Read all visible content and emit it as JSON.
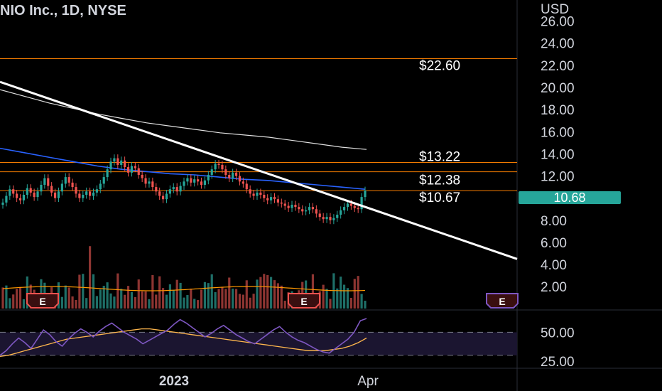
{
  "header": {
    "title": "NIO Inc., 1D, NYSE",
    "currency": "USD"
  },
  "last_price": {
    "label": "10.68",
    "color": "#26a69a"
  },
  "colors": {
    "up": "#26a69a",
    "down": "#ef5350",
    "ma_blue": "#2962ff",
    "ma_white": "#e0e0e0",
    "trendline": "#ffffff",
    "hline": "#f57c00",
    "volume_ma": "#ff9800",
    "rsi": "#7e57c2",
    "rsi_ma": "#ffb74d",
    "earnings": "#ef5350"
  },
  "chart_data": [
    {
      "type": "candlestick",
      "title": "NIO Inc., 1D, NYSE",
      "y_axis_label": "USD",
      "y_ticks": [
        "2.00",
        "4.00",
        "6.00",
        "8.00",
        "10.00",
        "12.00",
        "14.00",
        "16.00",
        "18.00",
        "20.00",
        "22.00",
        "24.00",
        "26.00"
      ],
      "ylim": [
        1.5,
        27
      ],
      "x_ticks": [
        "2023",
        "Apr"
      ],
      "levels": [
        {
          "label": "$22.60",
          "value": 22.6
        },
        {
          "label": "$13.22",
          "value": 13.22
        },
        {
          "label": "$12.38",
          "value": 12.38
        },
        {
          "label": "$10.67",
          "value": 10.67
        }
      ],
      "trendline": {
        "start": 20.5,
        "end": 4.5
      },
      "closes": [
        9.6,
        10.2,
        10.8,
        10.4,
        10.0,
        9.8,
        10.3,
        10.9,
        10.5,
        10.1,
        10.6,
        11.2,
        11.8,
        11.1,
        10.5,
        10.0,
        10.6,
        11.3,
        11.9,
        11.4,
        11.0,
        10.4,
        10.0,
        10.3,
        10.6,
        10.2,
        10.5,
        10.8,
        11.3,
        11.9,
        12.6,
        13.3,
        13.6,
        13.0,
        13.4,
        12.8,
        12.3,
        12.9,
        12.7,
        12.1,
        11.8,
        11.3,
        11.5,
        11.0,
        10.6,
        10.2,
        9.9,
        10.4,
        10.8,
        11.0,
        10.6,
        11.1,
        11.5,
        11.8,
        11.4,
        11.7,
        11.5,
        11.2,
        11.6,
        12.1,
        12.6,
        13.1,
        13.0,
        12.6,
        12.1,
        11.8,
        12.3,
        12.0,
        11.5,
        11.3,
        10.8,
        10.4,
        10.2,
        10.5,
        10.3,
        10.0,
        9.8,
        10.1,
        9.9,
        9.6,
        9.5,
        9.3,
        9.1,
        9.4,
        9.2,
        9.0,
        8.8,
        8.9,
        9.2,
        9.0,
        8.6,
        8.3,
        8.1,
        8.3,
        8.0,
        8.2,
        8.5,
        8.9,
        9.2,
        9.5,
        9.3,
        9.1,
        9.0,
        10.1,
        10.68
      ],
      "ma_blue": [
        14.5,
        14.1,
        13.7,
        13.3,
        12.9,
        12.6,
        12.4,
        12.2,
        12.1,
        11.9,
        11.7,
        11.6,
        11.4,
        11.2,
        11.0,
        10.8
      ],
      "ma_white": [
        19.8,
        19.2,
        18.6,
        18.1,
        17.6,
        17.2,
        16.8,
        16.5,
        16.2,
        15.9,
        15.7,
        15.5,
        15.2,
        14.9,
        14.6,
        14.4
      ]
    },
    {
      "type": "bar",
      "series_role": "volume",
      "earnings_markers": [
        "E",
        "E",
        "E"
      ]
    },
    {
      "type": "line",
      "series_role": "RSI",
      "y_ticks": [
        "25.00",
        "50.00"
      ],
      "ylim": [
        20,
        62
      ],
      "band": [
        30,
        50
      ],
      "rsi": [
        30,
        34,
        40,
        45,
        41,
        36,
        44,
        52,
        48,
        42,
        38,
        44,
        49,
        53,
        50,
        46,
        51,
        55,
        58,
        54,
        50,
        47,
        44,
        40,
        43,
        46,
        49,
        52,
        57,
        61,
        58,
        54,
        50,
        46,
        49,
        53,
        56,
        52,
        48,
        45,
        42,
        40,
        44,
        48,
        52,
        55,
        50,
        46,
        43,
        41,
        38,
        35,
        33,
        32,
        36,
        40,
        44,
        50,
        60,
        62
      ],
      "rsi_ma": [
        29,
        30,
        32,
        34,
        36,
        38,
        40,
        42,
        44,
        45,
        46,
        47,
        48,
        49,
        50,
        51,
        52,
        53,
        53,
        52,
        51,
        50,
        49,
        48,
        47,
        46,
        45,
        44,
        43,
        42,
        41,
        40,
        39,
        38,
        37,
        36,
        35,
        34,
        34,
        34,
        35,
        36,
        38,
        41,
        45
      ]
    }
  ]
}
